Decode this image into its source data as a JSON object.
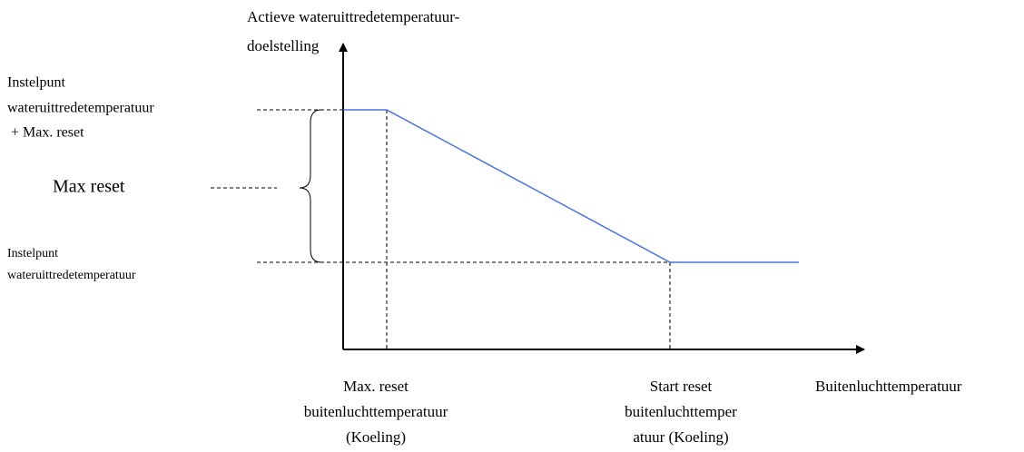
{
  "diagram": {
    "y_axis_title": [
      "Actieve wateruittredetemperatuur-",
      "doelstelling"
    ],
    "upper_setpoint_label": [
      "Instelpunt",
      "wateruittredetemperatuur",
      " + Max. reset"
    ],
    "max_reset_label": "Max reset",
    "lower_setpoint_label": [
      "Instelpunt",
      "wateruittredetemperatuur"
    ],
    "x_label_max_reset": [
      "Max. reset",
      "buitenluchttemperatuur",
      "(Koeling)"
    ],
    "x_label_start_reset": [
      "Start reset",
      "buitenluchttemper",
      "atuur (Koeling)"
    ],
    "x_axis_title": "Buitenluchttemperatuur"
  }
}
